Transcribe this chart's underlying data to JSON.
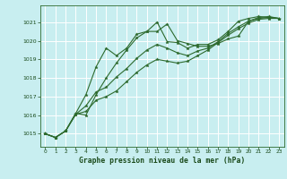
{
  "xlabel": "Graphe pression niveau de la mer (hPa)",
  "bg_color": "#c8eef0",
  "grid_color": "#ffffff",
  "line_color": "#2d6a2d",
  "text_color": "#1a4a1a",
  "xlim": [
    -0.5,
    23.5
  ],
  "ylim": [
    1014.3,
    1021.9
  ],
  "yticks": [
    1015,
    1016,
    1017,
    1018,
    1019,
    1020,
    1021
  ],
  "xticks": [
    0,
    1,
    2,
    3,
    4,
    5,
    6,
    7,
    8,
    9,
    10,
    11,
    12,
    13,
    14,
    15,
    16,
    17,
    18,
    19,
    20,
    21,
    22,
    23
  ],
  "series": [
    [
      1015.0,
      1014.8,
      1015.15,
      1016.1,
      1017.1,
      1018.6,
      1019.6,
      1019.2,
      1019.6,
      1020.35,
      1020.5,
      1021.0,
      1019.95,
      1019.9,
      1019.6,
      1019.8,
      1019.8,
      1020.05,
      1020.5,
      1021.05,
      1021.2,
      1021.3,
      1021.25,
      1021.2
    ],
    [
      1015.0,
      1014.8,
      1015.15,
      1016.1,
      1016.0,
      1017.1,
      1018.0,
      1018.8,
      1019.5,
      1020.15,
      1020.5,
      1020.5,
      1020.9,
      1020.0,
      1019.85,
      1019.7,
      1019.7,
      1019.85,
      1020.1,
      1020.25,
      1021.05,
      1021.25,
      1021.3,
      1021.2
    ],
    [
      1015.0,
      1014.8,
      1015.15,
      1016.05,
      1016.5,
      1017.25,
      1017.5,
      1018.05,
      1018.5,
      1019.05,
      1019.5,
      1019.8,
      1019.6,
      1019.35,
      1019.2,
      1019.45,
      1019.6,
      1019.95,
      1020.4,
      1020.75,
      1021.05,
      1021.2,
      1021.25,
      1021.2
    ],
    [
      1015.0,
      1014.8,
      1015.15,
      1016.05,
      1016.2,
      1016.8,
      1017.0,
      1017.3,
      1017.8,
      1018.3,
      1018.7,
      1019.0,
      1018.9,
      1018.8,
      1018.9,
      1019.2,
      1019.5,
      1019.9,
      1020.3,
      1020.65,
      1020.95,
      1021.15,
      1021.2,
      1021.2
    ]
  ]
}
